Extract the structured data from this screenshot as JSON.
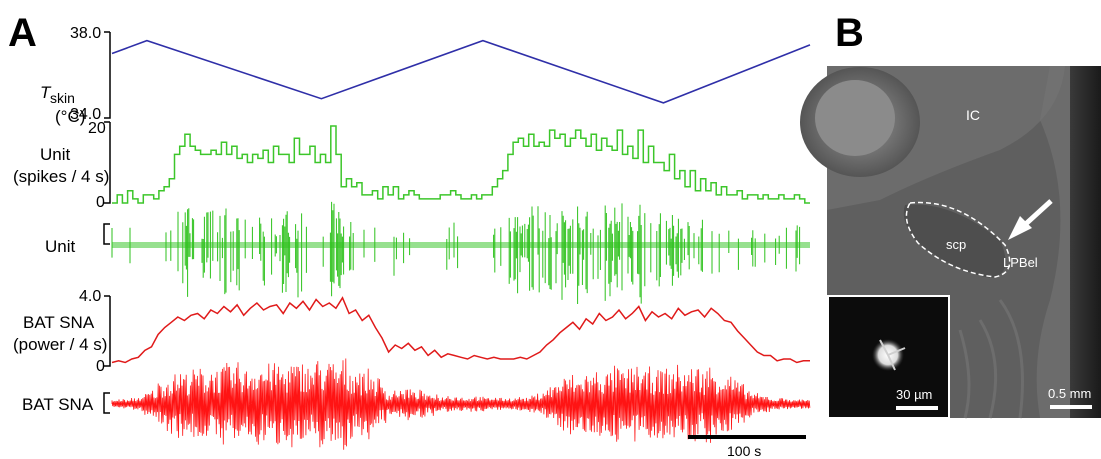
{
  "panel_a": {
    "letter": "A",
    "tskin": {
      "label_main": "T",
      "label_sub": "skin",
      "unit": "(°C)",
      "tick_top": "38.0",
      "tick_bottom": "34.0",
      "color": "#2f2fa8"
    },
    "unit_rate": {
      "label": "Unit",
      "unit": "(spikes / 4 s)",
      "tick_top": "20",
      "tick_bottom": "0",
      "color": "#3cc62a"
    },
    "unit_raw": {
      "label": "Unit",
      "color": "#2ec21c"
    },
    "bat_power": {
      "label": "BAT SNA",
      "unit": "(power / 4 s)",
      "tick_top": "4.0",
      "tick_bottom": "0",
      "color": "#e01a1a"
    },
    "bat_raw": {
      "label": "BAT SNA",
      "color": "#ff1414"
    },
    "scalebar": {
      "label": "100 s"
    }
  },
  "panel_b": {
    "letter": "B",
    "labels": {
      "ic": "IC",
      "scp": "scp",
      "lpbel": "LPBel"
    },
    "inset_scale": "30 µm",
    "main_scale": "0.5 mm"
  },
  "chart_data": [
    {
      "type": "line",
      "title": "",
      "ylabel": "T skin (°C)",
      "ylim": [
        34.0,
        38.0
      ],
      "series": [
        {
          "name": "",
          "x": [
            0,
            35,
            210,
            372,
            553,
            700
          ],
          "values": [
            37.0,
            37.6,
            34.9,
            37.6,
            34.7,
            37.4
          ]
        }
      ]
    },
    {
      "type": "line",
      "title": "",
      "ylabel": "Unit (spikes / 4 s)",
      "ylim": [
        0,
        20
      ],
      "series": [
        {
          "name": "",
          "values": [
            0,
            2,
            0,
            3,
            1,
            0,
            2,
            2,
            1,
            3,
            4,
            6,
            12,
            14,
            17,
            14,
            13,
            12,
            12,
            13,
            12,
            15,
            12,
            14,
            11,
            12,
            10,
            12,
            11,
            13,
            10,
            14,
            12,
            12,
            10,
            16,
            12,
            12,
            14,
            10,
            12,
            10,
            19,
            12,
            4,
            6,
            4,
            5,
            2,
            2,
            3,
            1,
            4,
            2,
            4,
            1,
            2,
            3,
            2,
            1,
            1,
            1,
            1,
            2,
            2,
            3,
            2,
            1,
            1,
            2,
            1,
            2,
            2,
            4,
            6,
            8,
            12,
            15,
            16,
            14,
            17,
            14,
            15,
            14,
            18,
            16,
            17,
            14,
            16,
            18,
            16,
            14,
            17,
            13,
            16,
            14,
            13,
            18,
            12,
            14,
            11,
            18,
            10,
            14,
            10,
            10,
            8,
            12,
            6,
            8,
            4,
            8,
            3,
            6,
            3,
            5,
            2,
            4,
            2,
            2,
            3,
            1,
            2,
            2,
            1,
            2,
            1,
            1,
            2,
            1,
            1,
            2,
            1,
            0
          ]
        }
      ]
    },
    {
      "type": "line",
      "title": "",
      "ylabel": "BAT SNA (power / 4 s)",
      "ylim": [
        0,
        4.0
      ],
      "series": [
        {
          "name": "",
          "values": [
            0.2,
            0.3,
            0.2,
            0.4,
            0.5,
            0.9,
            1.1,
            1.8,
            2.2,
            2.5,
            2.8,
            2.6,
            2.9,
            3.0,
            2.7,
            3.2,
            3.0,
            3.4,
            3.1,
            3.5,
            2.9,
            3.3,
            3.6,
            3.2,
            3.4,
            3.5,
            3.0,
            3.6,
            3.3,
            3.7,
            3.2,
            3.8,
            3.4,
            3.6,
            3.3,
            3.9,
            3.0,
            3.2,
            2.6,
            2.9,
            2.2,
            1.6,
            0.8,
            1.2,
            1.0,
            1.3,
            0.9,
            1.1,
            0.6,
            0.9,
            0.5,
            0.7,
            0.6,
            0.5,
            0.4,
            0.6,
            0.5,
            0.4,
            0.5,
            0.4,
            0.4,
            0.4,
            0.5,
            0.4,
            0.6,
            0.8,
            1.2,
            1.5,
            1.9,
            2.2,
            2.5,
            2.1,
            2.7,
            2.4,
            3.0,
            2.6,
            2.8,
            3.2,
            2.7,
            3.0,
            3.4,
            2.6,
            3.1,
            2.8,
            3.0,
            2.7,
            3.3,
            2.9,
            3.1,
            3.2,
            2.8,
            3.3,
            3.0,
            2.6,
            2.5,
            2.0,
            1.6,
            1.2,
            0.8,
            0.6,
            0.6,
            0.3,
            0.4,
            0.4,
            0.2,
            0.3,
            0.3
          ]
        }
      ]
    }
  ]
}
